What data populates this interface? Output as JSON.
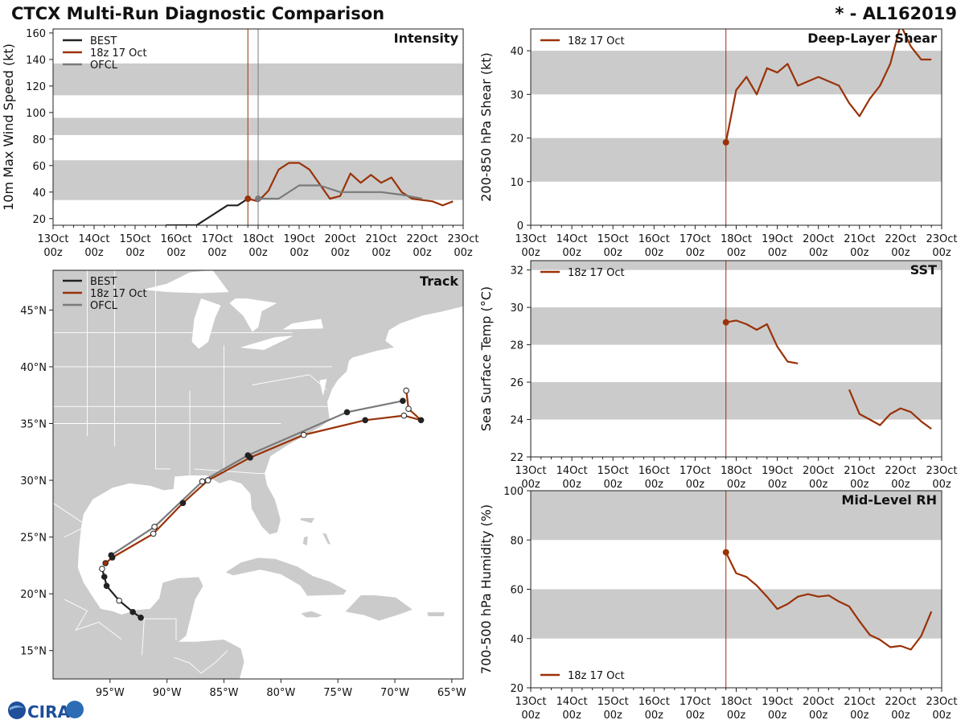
{
  "header": {
    "title": "CTCX Multi-Run Diagnostic Comparison",
    "storm": "* - AL162019"
  },
  "colors": {
    "best": "#222222",
    "run": "#9a3208",
    "ofcl": "#7a7a7a",
    "band": "#cbcbcb",
    "land": "#cbcbcb",
    "border": "#ffffff"
  },
  "logo": {
    "text": "CIRA"
  },
  "chart_data": [
    {
      "id": "intensity",
      "type": "line",
      "title": "Intensity",
      "ylabel": "10m Max Wind Speed (kt)",
      "ylim": [
        15,
        163
      ],
      "yticks": [
        20,
        40,
        60,
        80,
        100,
        120,
        140,
        160
      ],
      "xlim": [
        0,
        10
      ],
      "xtick_labels": [
        {
          "day": "13Oct",
          "hour": "00z"
        },
        {
          "day": "14Oct",
          "hour": "00z"
        },
        {
          "day": "15Oct",
          "hour": "00z"
        },
        {
          "day": "16Oct",
          "hour": "00z"
        },
        {
          "day": "17Oct",
          "hour": "00z"
        },
        {
          "day": "18Oct",
          "hour": "00z"
        },
        {
          "day": "19Oct",
          "hour": "00z"
        },
        {
          "day": "20Oct",
          "hour": "00z"
        },
        {
          "day": "21Oct",
          "hour": "00z"
        },
        {
          "day": "22Oct",
          "hour": "00z"
        },
        {
          "day": "23Oct",
          "hour": "00z"
        }
      ],
      "bands": [
        [
          34,
          64
        ],
        [
          83,
          96
        ],
        [
          113,
          137
        ]
      ],
      "vlines": [
        {
          "x": 4.75,
          "series": "run"
        },
        {
          "x": 5.0,
          "series": "ofcl"
        }
      ],
      "legend": [
        "BEST",
        "18z 17 Oct",
        "OFCL"
      ],
      "series": [
        {
          "name": "BEST",
          "key": "best",
          "x": [
            2.75,
            3.5,
            4.25,
            4.5,
            4.75
          ],
          "y": [
            15,
            15,
            30,
            30,
            35
          ]
        },
        {
          "name": "18z 17 Oct",
          "key": "run",
          "marker_first": true,
          "x": [
            4.75,
            5.0,
            5.25,
            5.5,
            5.75,
            6.0,
            6.25,
            6.5,
            6.75,
            7.0,
            7.25,
            7.5,
            7.75,
            8.0,
            8.25,
            8.5,
            8.75,
            9.0,
            9.25,
            9.5,
            9.75
          ],
          "y": [
            35,
            33,
            41,
            57,
            62,
            62,
            57,
            46,
            35,
            37,
            54,
            47,
            53,
            47,
            51,
            40,
            35,
            34,
            33,
            30,
            33
          ]
        },
        {
          "name": "OFCL",
          "key": "ofcl",
          "marker_first": true,
          "x": [
            5.0,
            5.5,
            6.0,
            6.5,
            7.0,
            7.5,
            8.0,
            8.5,
            9.0
          ],
          "y": [
            35,
            35,
            45,
            45,
            40,
            40,
            40,
            38,
            35
          ]
        }
      ]
    },
    {
      "id": "shear",
      "type": "line",
      "title": "Deep-Layer Shear",
      "ylabel": "200-850 hPa Shear (kt)",
      "ylim": [
        0,
        45
      ],
      "yticks": [
        0,
        10,
        20,
        30,
        40
      ],
      "xlim": [
        0,
        10
      ],
      "xtick_labels": [
        {
          "day": "13Oct",
          "hour": "00z"
        },
        {
          "day": "14Oct",
          "hour": "00z"
        },
        {
          "day": "15Oct",
          "hour": "00z"
        },
        {
          "day": "16Oct",
          "hour": "00z"
        },
        {
          "day": "17Oct",
          "hour": "00z"
        },
        {
          "day": "18Oct",
          "hour": "00z"
        },
        {
          "day": "19Oct",
          "hour": "00z"
        },
        {
          "day": "20Oct",
          "hour": "00z"
        },
        {
          "day": "21Oct",
          "hour": "00z"
        },
        {
          "day": "22Oct",
          "hour": "00z"
        },
        {
          "day": "23Oct",
          "hour": "00z"
        }
      ],
      "bands": [
        [
          10,
          20
        ],
        [
          30,
          40
        ]
      ],
      "vlines": [
        {
          "x": 4.75,
          "series": "run"
        }
      ],
      "legend": [
        "18z 17 Oct"
      ],
      "series": [
        {
          "name": "18z 17 Oct",
          "key": "run",
          "marker_first": true,
          "x": [
            4.75,
            5.0,
            5.25,
            5.5,
            5.75,
            6.0,
            6.25,
            6.5,
            7.0,
            7.5,
            7.75,
            8.0,
            8.25,
            8.5,
            8.75,
            9.0,
            9.25,
            9.5,
            9.75
          ],
          "y": [
            19,
            31,
            34,
            30,
            36,
            35,
            37,
            32,
            34,
            32,
            28,
            25,
            29,
            32,
            37,
            46,
            41,
            38,
            38
          ]
        }
      ]
    },
    {
      "id": "sst",
      "type": "line",
      "title": "SST",
      "ylabel": "Sea Surface Temp (°C)",
      "ylim": [
        22,
        32.5
      ],
      "yticks": [
        22,
        24,
        26,
        28,
        30,
        32
      ],
      "xlim": [
        0,
        10
      ],
      "xtick_labels": [
        {
          "day": "13Oct",
          "hour": "00z"
        },
        {
          "day": "14Oct",
          "hour": "00z"
        },
        {
          "day": "15Oct",
          "hour": "00z"
        },
        {
          "day": "16Oct",
          "hour": "00z"
        },
        {
          "day": "17Oct",
          "hour": "00z"
        },
        {
          "day": "18Oct",
          "hour": "00z"
        },
        {
          "day": "19Oct",
          "hour": "00z"
        },
        {
          "day": "20Oct",
          "hour": "00z"
        },
        {
          "day": "21Oct",
          "hour": "00z"
        },
        {
          "day": "22Oct",
          "hour": "00z"
        },
        {
          "day": "23Oct",
          "hour": "00z"
        }
      ],
      "bands": [
        [
          24,
          26
        ],
        [
          28,
          30
        ],
        [
          32,
          32.5
        ]
      ],
      "vlines": [
        {
          "x": 4.75,
          "series": "run"
        }
      ],
      "legend": [
        "18z 17 Oct"
      ],
      "series": [
        {
          "name": "18z 17 Oct",
          "key": "run",
          "marker_first": true,
          "x": [
            4.75,
            5.0,
            5.25,
            5.5,
            5.75,
            6.0,
            6.25,
            6.5
          ],
          "y": [
            29.2,
            29.3,
            29.1,
            28.8,
            29.1,
            27.9,
            27.1,
            27.0
          ]
        },
        {
          "name": "18z 17 Oct (cont.)",
          "key": "run",
          "x": [
            7.75,
            8.0,
            8.25,
            8.5,
            8.75,
            9.0,
            9.25,
            9.5,
            9.75
          ],
          "y": [
            25.6,
            24.3,
            24.0,
            23.7,
            24.3,
            24.6,
            24.4,
            23.9,
            23.5
          ]
        }
      ]
    },
    {
      "id": "rh",
      "type": "line",
      "title": "Mid-Level RH",
      "ylabel": "700-500 hPa Humidity (%)",
      "ylim": [
        20,
        100
      ],
      "yticks": [
        20,
        40,
        60,
        80,
        100
      ],
      "xlim": [
        0,
        10
      ],
      "xtick_labels": [
        {
          "day": "13Oct",
          "hour": "00z"
        },
        {
          "day": "14Oct",
          "hour": "00z"
        },
        {
          "day": "15Oct",
          "hour": "00z"
        },
        {
          "day": "16Oct",
          "hour": "00z"
        },
        {
          "day": "17Oct",
          "hour": "00z"
        },
        {
          "day": "18Oct",
          "hour": "00z"
        },
        {
          "day": "19Oct",
          "hour": "00z"
        },
        {
          "day": "20Oct",
          "hour": "00z"
        },
        {
          "day": "21Oct",
          "hour": "00z"
        },
        {
          "day": "22Oct",
          "hour": "00z"
        },
        {
          "day": "23Oct",
          "hour": "00z"
        }
      ],
      "bands": [
        [
          40,
          60
        ],
        [
          80,
          100
        ]
      ],
      "vlines": [
        {
          "x": 4.75,
          "series": "run"
        }
      ],
      "legend": [
        "18z 17 Oct"
      ],
      "series": [
        {
          "name": "18z 17 Oct",
          "key": "run",
          "marker_first": true,
          "x": [
            4.75,
            5.0,
            5.25,
            5.5,
            5.75,
            6.0,
            6.25,
            6.5,
            6.75,
            7.0,
            7.25,
            7.5,
            7.75,
            8.0,
            8.25,
            8.5,
            8.75,
            9.0,
            9.25,
            9.5,
            9.75
          ],
          "y": [
            75,
            66.5,
            65,
            61.5,
            57,
            52,
            54,
            57,
            58,
            57,
            57.5,
            55,
            53,
            47,
            41.5,
            39.5,
            36.5,
            37,
            35.5,
            41,
            51
          ]
        }
      ]
    },
    {
      "id": "track",
      "type": "scatter",
      "title": "Track",
      "xlim": [
        -100,
        -64
      ],
      "ylim": [
        12.5,
        48.5
      ],
      "xticks": [
        -95,
        -90,
        -85,
        -80,
        -75,
        -70,
        -65
      ],
      "xtick_labels": [
        "95°W",
        "90°W",
        "85°W",
        "80°W",
        "75°W",
        "70°W",
        "65°W"
      ],
      "yticks": [
        15,
        20,
        25,
        30,
        35,
        40,
        45
      ],
      "ytick_labels": [
        "15°N",
        "20°N",
        "25°N",
        "30°N",
        "35°N",
        "40°N",
        "45°N"
      ],
      "legend": [
        "BEST",
        "18z 17 Oct",
        "OFCL"
      ],
      "series": [
        {
          "name": "BEST",
          "key": "best",
          "lon": [
            -92.3,
            -93.0,
            -94.2,
            -95.3,
            -95.5,
            -95.7
          ],
          "lat": [
            17.9,
            18.4,
            19.4,
            20.7,
            21.5,
            22.2
          ],
          "filled": [
            true,
            true,
            false,
            true,
            true,
            false
          ]
        },
        {
          "name": "18z 17 Oct",
          "key": "run",
          "lon": [
            -95.4,
            -94.8,
            -91.2,
            -88.6,
            -86.4,
            -82.7,
            -78.0,
            -72.6,
            -69.2,
            -67.7,
            -68.8,
            -69.0
          ],
          "lat": [
            22.7,
            23.2,
            25.3,
            28.0,
            30.0,
            32.0,
            34.0,
            35.3,
            35.7,
            35.3,
            36.3,
            37.9
          ],
          "filled": [
            true,
            true,
            false,
            true,
            false,
            true,
            false,
            true,
            false,
            true,
            false,
            false
          ]
        },
        {
          "name": "OFCL",
          "key": "ofcl",
          "lon": [
            -94.9,
            -91.1,
            -86.9,
            -82.9,
            -74.2,
            -69.3
          ],
          "lat": [
            23.4,
            25.9,
            29.9,
            32.2,
            36.0,
            37.0
          ],
          "filled": [
            true,
            false,
            false,
            true,
            true,
            true
          ]
        }
      ]
    }
  ]
}
